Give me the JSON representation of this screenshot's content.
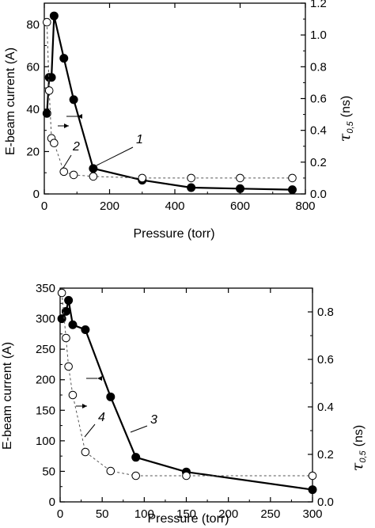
{
  "chart_data": [
    {
      "type": "line",
      "xlabel": "Pressure (torr)",
      "ylabel": "E-beam current (A)",
      "y2label": "τ0,5 (ns)",
      "xlim": [
        0,
        800
      ],
      "ylim": [
        0,
        90
      ],
      "y2lim": [
        0,
        1.2
      ],
      "xticks": [
        0,
        200,
        400,
        600,
        800
      ],
      "yticks": [
        0,
        20,
        40,
        60,
        80
      ],
      "y2ticks": [
        0.0,
        0.2,
        0.4,
        0.6,
        0.8,
        1.0,
        1.2
      ],
      "y2tick_labels": [
        "0.0",
        "0.2",
        "0.4",
        "0.6",
        "0.8",
        "1.0",
        "1.2"
      ],
      "series": [
        {
          "label": "1",
          "axis": "left",
          "style": "solid-filled",
          "x": [
            8,
            15,
            22,
            30,
            60,
            90,
            150,
            300,
            450,
            600,
            760
          ],
          "y": [
            38,
            55,
            55,
            84,
            64,
            44.5,
            12,
            6.5,
            3,
            2.5,
            2
          ]
        },
        {
          "label": "2",
          "axis": "right",
          "style": "dashed-open",
          "x": [
            8,
            15,
            22,
            30,
            60,
            90,
            150,
            300,
            450,
            600,
            760
          ],
          "y": [
            1.08,
            0.65,
            0.35,
            0.32,
            0.14,
            0.12,
            0.11,
            0.1,
            0.1,
            0.1,
            0.1
          ]
        }
      ]
    },
    {
      "type": "line",
      "xlabel": "Pressure (torr)",
      "ylabel": "E-beam current (A)",
      "y2label": "τ0,5 (ns)",
      "xlim": [
        0,
        300
      ],
      "ylim": [
        0,
        350
      ],
      "y2lim": [
        0,
        0.9
      ],
      "xticks": [
        0,
        50,
        100,
        150,
        200,
        250,
        300
      ],
      "yticks": [
        0,
        50,
        100,
        150,
        200,
        250,
        300,
        350
      ],
      "y2ticks": [
        0.0,
        0.2,
        0.4,
        0.6,
        0.8
      ],
      "y2tick_labels": [
        "0.0",
        "0.2",
        "0.4",
        "0.6",
        "0.8"
      ],
      "series": [
        {
          "label": "3",
          "axis": "left",
          "style": "solid-filled",
          "x": [
            2,
            7,
            10,
            15,
            30,
            60,
            90,
            150,
            300
          ],
          "y": [
            300,
            312,
            330,
            290,
            282,
            172,
            73,
            49,
            20
          ]
        },
        {
          "label": "4",
          "axis": "right",
          "style": "dashed-open",
          "x": [
            2,
            7,
            10,
            15,
            30,
            60,
            90,
            150,
            300
          ],
          "y": [
            0.88,
            0.69,
            0.57,
            0.45,
            0.21,
            0.13,
            0.11,
            0.11,
            0.11
          ]
        }
      ]
    }
  ],
  "panels": [
    {
      "xlabel": "Pressure (torr)",
      "ylabel": "E-beam current (A)",
      "y2label": "τ",
      "y2label_sub": "0,5",
      "y2label_unit": "(ns)",
      "label_solid": "1",
      "label_dashed": "2"
    },
    {
      "xlabel": "Pressure (torr)",
      "ylabel": "E-beam current (A)",
      "y2label": "τ",
      "y2label_sub": "0,5",
      "y2label_unit": "(ns)",
      "label_solid": "3",
      "label_dashed": "4"
    }
  ]
}
